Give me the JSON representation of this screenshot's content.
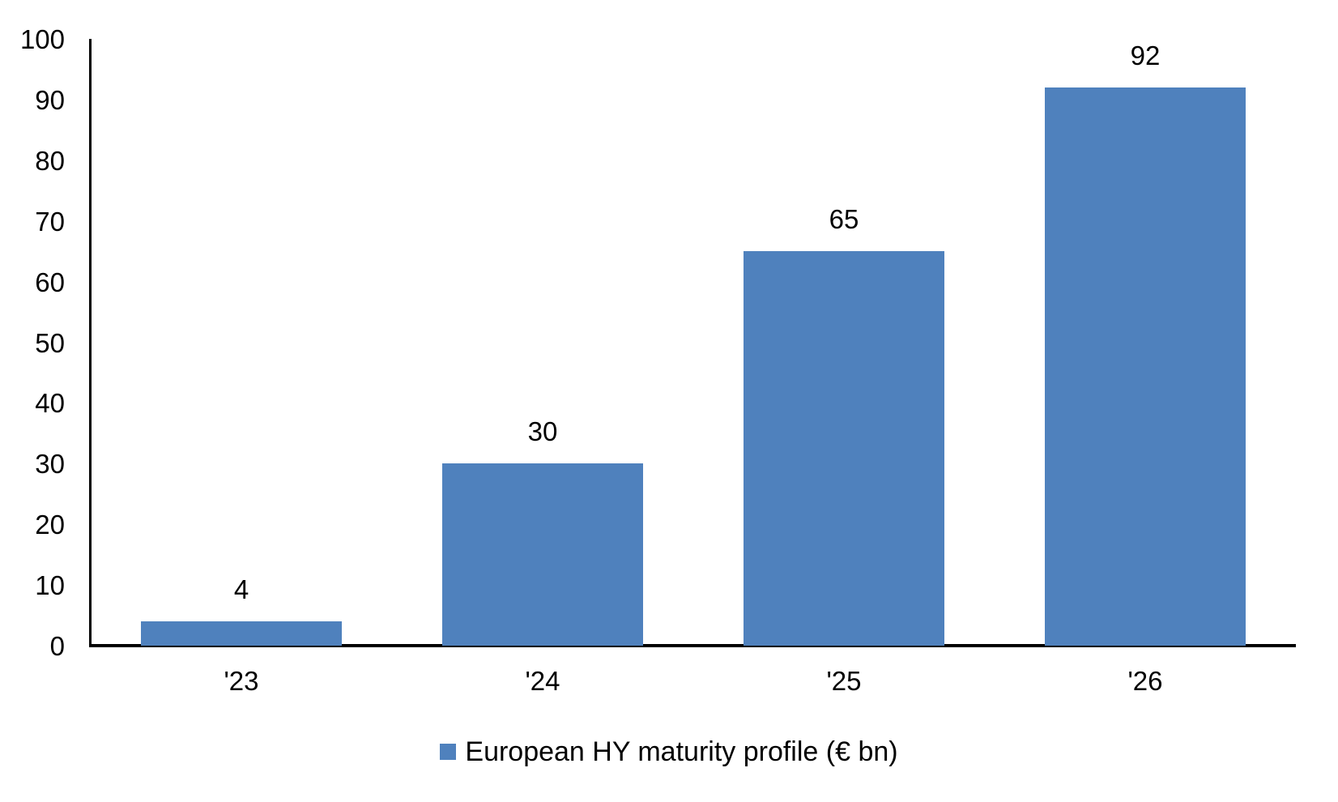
{
  "chart_data": {
    "type": "bar",
    "categories": [
      "'23",
      "'24",
      "'25",
      "'26"
    ],
    "values": [
      4,
      30,
      65,
      92
    ],
    "data_labels": [
      "4",
      "30",
      "65",
      "92"
    ],
    "series": [
      {
        "name": "European HY maturity profile (€ bn)",
        "values": [
          4,
          30,
          65,
          92
        ]
      }
    ],
    "title": "",
    "xlabel": "",
    "ylabel": "",
    "ylim": [
      0,
      100
    ],
    "yticks": [
      0,
      10,
      20,
      30,
      40,
      50,
      60,
      70,
      80,
      90,
      100
    ],
    "grid": false,
    "legend_position": "bottom",
    "bar_color": "#4F81BD",
    "axis_color": "#000000",
    "text_color": "#000000"
  },
  "legend": {
    "label": "European HY maturity profile (€ bn)",
    "swatch_color": "#4F81BD"
  }
}
